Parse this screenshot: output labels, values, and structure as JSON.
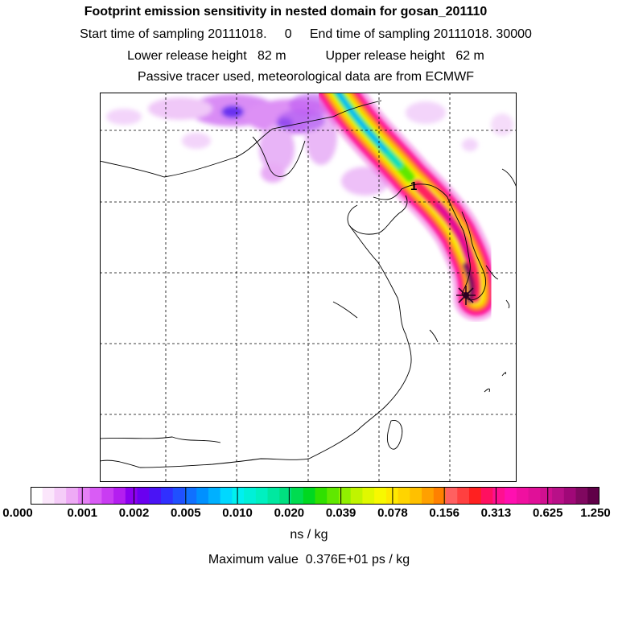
{
  "header": {
    "title": "Footprint emission sensitivity in nested domain for gosan_201110",
    "sampling": "Start time of sampling 20111018.     0     End time of sampling 20111018. 30000",
    "release": "Lower release height   82 m           Upper release height   62 m",
    "tracer": "Passive tracer used, meteorological data are from ECMWF"
  },
  "map": {
    "marker_label": "1",
    "receptor_icon": "star-icon"
  },
  "colorbar": {
    "tick_labels": [
      "0.000",
      "0.001",
      "0.002",
      "0.005",
      "0.010",
      "0.020",
      "0.039",
      "0.078",
      "0.156",
      "0.313",
      "0.625",
      "1.250"
    ],
    "colors": [
      "#ffffff",
      "#fbe6fb",
      "#f5ccf8",
      "#eeaaf5",
      "#e580f5",
      "#d95cf5",
      "#c93cf2",
      "#b41ef0",
      "#8c00f0",
      "#6a00f0",
      "#4a14f5",
      "#3030ff",
      "#2050ff",
      "#1070ff",
      "#0090ff",
      "#00b0ff",
      "#00d8ff",
      "#00f0f0",
      "#00f0d8",
      "#00f0c0",
      "#00e8a0",
      "#00e080",
      "#00dc50",
      "#00d820",
      "#30e000",
      "#60e800",
      "#90f000",
      "#c0f400",
      "#e0f800",
      "#f8f800",
      "#ffe800",
      "#ffd400",
      "#ffc000",
      "#ffa000",
      "#ff8000",
      "#ff6060",
      "#ff4040",
      "#ff2020",
      "#ff1060",
      "#ff1090",
      "#ff10b0",
      "#f010a0",
      "#e01098",
      "#d01090",
      "#b81088",
      "#a00878",
      "#800860",
      "#600048"
    ]
  },
  "unit": "ns / kg",
  "max_value": "Maximum value  0.376E+01 ps / kg"
}
